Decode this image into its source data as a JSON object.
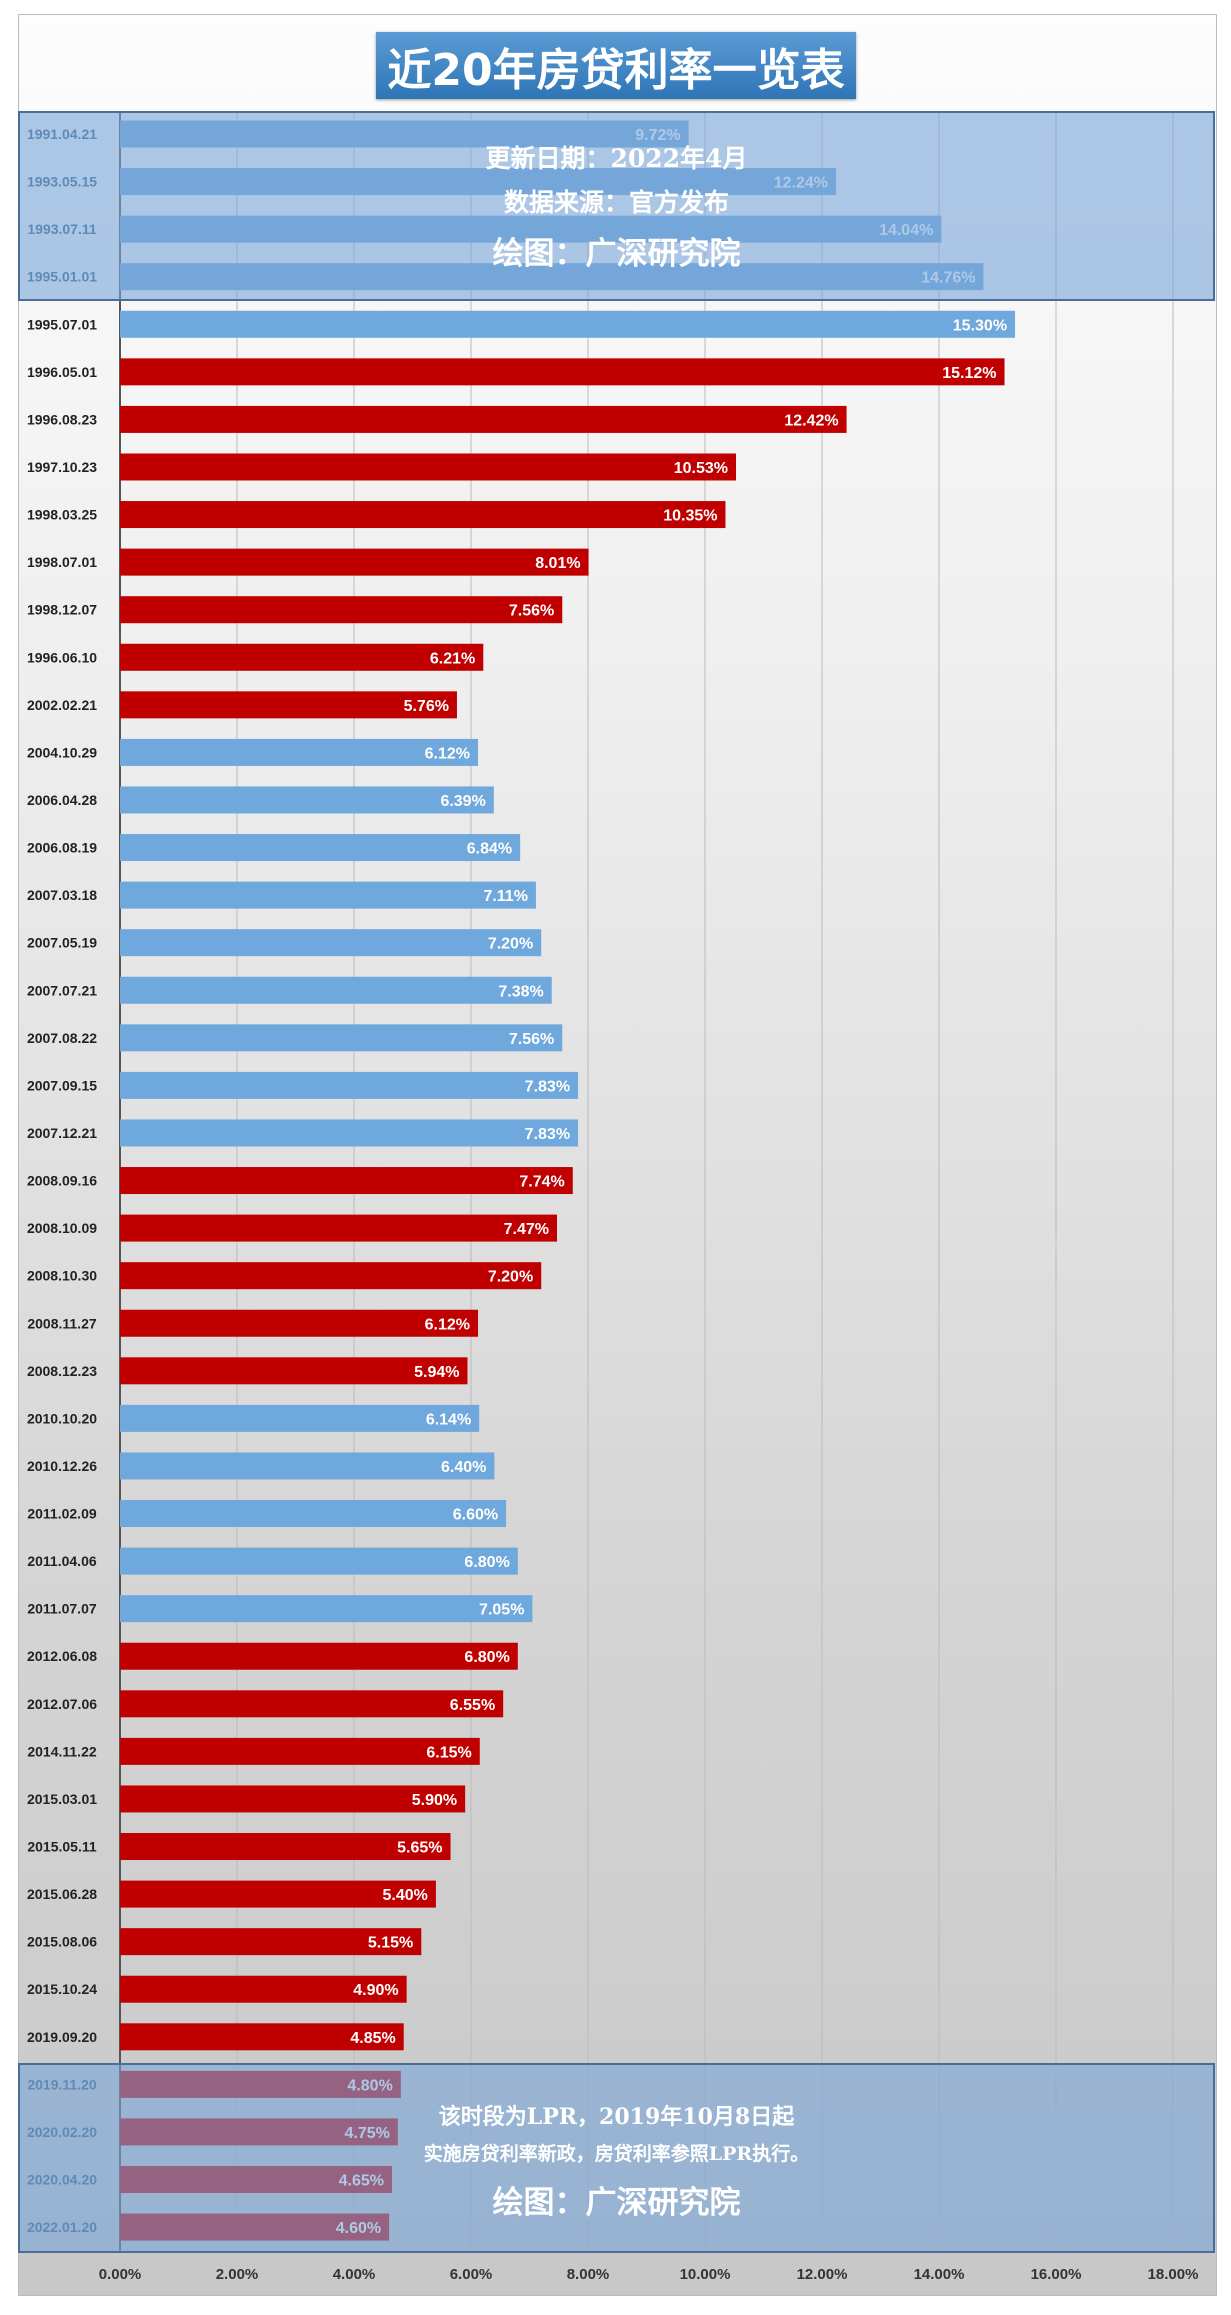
{
  "chart_data": {
    "type": "bar",
    "orientation": "horizontal",
    "title": "近20年房贷利率一览表",
    "xlim": [
      0,
      18
    ],
    "xticks": [
      "0.00%",
      "2.00%",
      "4.00%",
      "6.00%",
      "8.00%",
      "10.00%",
      "12.00%",
      "14.00%",
      "16.00%",
      "18.00%"
    ],
    "grid": true,
    "colors": {
      "rise": "#6fa8dc",
      "fall": "#c00000"
    },
    "categories": [
      "1991.04.21",
      "1993.05.15",
      "1993.07.11",
      "1995.01.01",
      "1995.07.01",
      "1996.05.01",
      "1996.08.23",
      "1997.10.23",
      "1998.03.25",
      "1998.07.01",
      "1998.12.07",
      "1996.06.10",
      "2002.02.21",
      "2004.10.29",
      "2006.04.28",
      "2006.08.19",
      "2007.03.18",
      "2007.05.19",
      "2007.07.21",
      "2007.08.22",
      "2007.09.15",
      "2007.12.21",
      "2008.09.16",
      "2008.10.09",
      "2008.10.30",
      "2008.11.27",
      "2008.12.23",
      "2010.10.20",
      "2010.12.26",
      "2011.02.09",
      "2011.04.06",
      "2011.07.07",
      "2012.06.08",
      "2012.07.06",
      "2014.11.22",
      "2015.03.01",
      "2015.05.11",
      "2015.06.28",
      "2015.08.06",
      "2015.10.24",
      "2019.09.20",
      "2019.11.20",
      "2020.02.20",
      "2020.04.20",
      "2022.01.20"
    ],
    "values": [
      9.72,
      12.24,
      14.04,
      14.76,
      15.3,
      15.12,
      12.42,
      10.53,
      10.35,
      8.01,
      7.56,
      6.21,
      5.76,
      6.12,
      6.39,
      6.84,
      7.11,
      7.2,
      7.38,
      7.56,
      7.83,
      7.83,
      7.74,
      7.47,
      7.2,
      6.12,
      5.94,
      6.14,
      6.4,
      6.6,
      6.8,
      7.05,
      6.8,
      6.55,
      6.15,
      5.9,
      5.65,
      5.4,
      5.15,
      4.9,
      4.85,
      4.8,
      4.75,
      4.65,
      4.6
    ],
    "labels": [
      "9.72%",
      "12.24%",
      "14.04%",
      "14.76%",
      "15.30%",
      "15.12%",
      "12.42%",
      "10.53%",
      "10.35%",
      "8.01%",
      "7.56%",
      "6.21%",
      "5.76%",
      "6.12%",
      "6.39%",
      "6.84%",
      "7.11%",
      "7.20%",
      "7.38%",
      "7.56%",
      "7.83%",
      "7.83%",
      "7.74%",
      "7.47%",
      "7.20%",
      "6.12%",
      "5.94%",
      "6.14%",
      "6.40%",
      "6.60%",
      "6.80%",
      "7.05%",
      "6.80%",
      "6.55%",
      "6.15%",
      "5.90%",
      "5.65%",
      "5.40%",
      "5.15%",
      "4.90%",
      "4.85%",
      "4.80%",
      "4.75%",
      "4.65%",
      "4.60%"
    ],
    "bar_colors": [
      "rise",
      "rise",
      "rise",
      "rise",
      "rise",
      "fall",
      "fall",
      "fall",
      "fall",
      "fall",
      "fall",
      "fall",
      "fall",
      "rise",
      "rise",
      "rise",
      "rise",
      "rise",
      "rise",
      "rise",
      "rise",
      "rise",
      "fall",
      "fall",
      "fall",
      "fall",
      "fall",
      "rise",
      "rise",
      "rise",
      "rise",
      "rise",
      "fall",
      "fall",
      "fall",
      "fall",
      "fall",
      "fall",
      "fall",
      "fall",
      "fall",
      "fall",
      "fall",
      "fall",
      "fall"
    ]
  },
  "top_note": {
    "line1": "更新日期：2022年4月",
    "line2": "数据来源：官方发布",
    "line3": "绘图：广深研究院"
  },
  "bottom_note": {
    "line1": "该时段为LPR，2019年10月8日起",
    "line2": "实施房贷利率新政，房贷利率参照LPR执行。",
    "line3": "绘图：广深研究院"
  }
}
